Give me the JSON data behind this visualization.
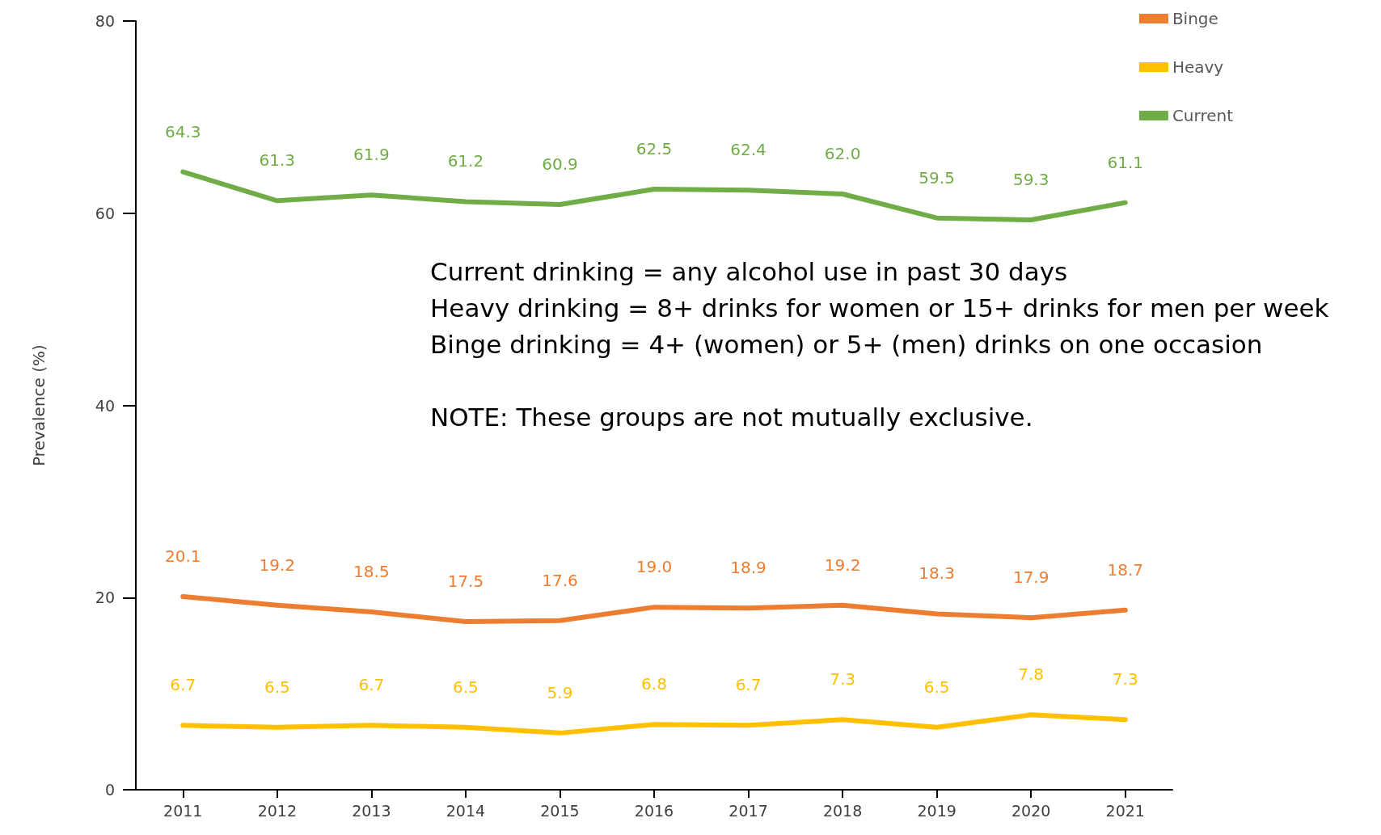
{
  "chart_data": {
    "type": "line",
    "ylabel": "Prevalence (%)",
    "categories": [
      "2011",
      "2012",
      "2013",
      "2014",
      "2015",
      "2016",
      "2017",
      "2018",
      "2019",
      "2020",
      "2021"
    ],
    "series": [
      {
        "name": "Binge",
        "color": "#ed7d31",
        "values": [
          20.1,
          19.2,
          18.5,
          17.5,
          17.6,
          19.0,
          18.9,
          19.2,
          18.3,
          17.9,
          18.7
        ],
        "value_labels": [
          "20.1",
          "19.2",
          "18.5",
          "17.5",
          "17.6",
          "19.0",
          "18.9",
          "19.2",
          "18.3",
          "17.9",
          "18.7"
        ]
      },
      {
        "name": "Heavy",
        "color": "#ffc000",
        "values": [
          6.7,
          6.5,
          6.7,
          6.5,
          5.9,
          6.8,
          6.7,
          7.3,
          6.5,
          7.8,
          7.3
        ],
        "value_labels": [
          "6.7",
          "6.5",
          "6.7",
          "6.5",
          "5.9",
          "6.8",
          "6.7",
          "7.3",
          "6.5",
          "7.8",
          "7.3"
        ]
      },
      {
        "name": "Current",
        "color": "#70ad47",
        "values": [
          64.3,
          61.3,
          61.9,
          61.2,
          60.9,
          62.5,
          62.4,
          62.0,
          59.5,
          59.3,
          61.1
        ],
        "value_labels": [
          "64.3",
          "61.3",
          "61.9",
          "61.2",
          "60.9",
          "62.5",
          "62.4",
          "62.0",
          "59.5",
          "59.3",
          "61.1"
        ]
      }
    ],
    "ylim": [
      0,
      80
    ],
    "yticks": [
      0,
      20,
      40,
      60,
      80
    ],
    "grid": false,
    "legend": "top right",
    "marker": "none",
    "line_style": "solid",
    "annotations": [
      "Current drinking = any alcohol use in past 30 days",
      "Heavy drinking = 8+ drinks for women or 15+ drinks for men per week",
      "Binge drinking = 4+ (women) or 5+ (men) drinks on one occasion",
      "NOTE: These groups are not mutually exclusive."
    ]
  }
}
